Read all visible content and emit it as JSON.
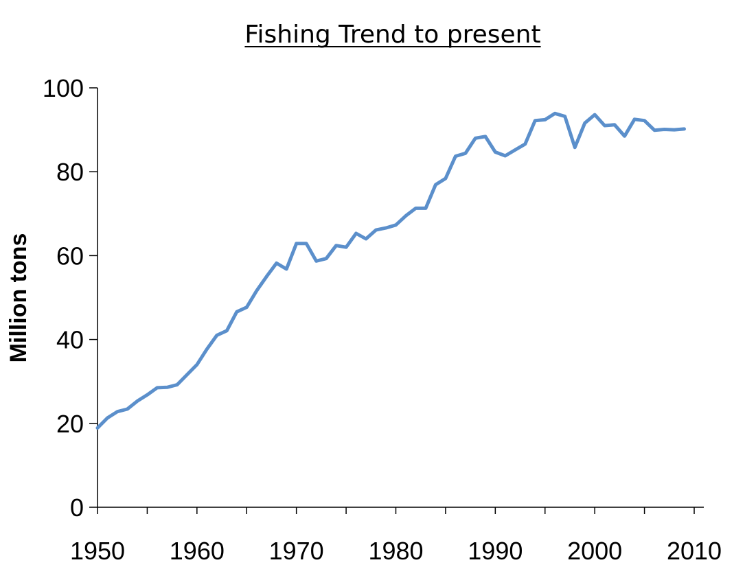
{
  "chart_data": {
    "type": "line",
    "title": "Fishing Trend to present",
    "xlabel": "",
    "ylabel": "Million tons",
    "xlim": [
      1950,
      2010
    ],
    "ylim": [
      0,
      100
    ],
    "x_ticks": [
      "1950",
      "1960",
      "1970",
      "1980",
      "1990",
      "2000",
      "2010"
    ],
    "y_ticks": [
      "0",
      "20",
      "40",
      "60",
      "80",
      "100"
    ],
    "grid": false,
    "legend": "none",
    "series_color": "#5B8FCB",
    "x": [
      1950,
      1951,
      1952,
      1953,
      1954,
      1955,
      1956,
      1957,
      1958,
      1959,
      1960,
      1961,
      1962,
      1963,
      1964,
      1965,
      1966,
      1967,
      1968,
      1969,
      1970,
      1971,
      1972,
      1973,
      1974,
      1975,
      1976,
      1977,
      1978,
      1979,
      1980,
      1981,
      1982,
      1983,
      1984,
      1985,
      1986,
      1987,
      1988,
      1989,
      1990,
      1991,
      1992,
      1993,
      1994,
      1995,
      1996,
      1997,
      1998,
      1999,
      2000,
      2001,
      2002,
      2003,
      2004,
      2005,
      2006,
      2007,
      2008,
      2009
    ],
    "series": [
      {
        "values": [
          18.9,
          21.3,
          22.8,
          23.4,
          25.3,
          26.8,
          28.5,
          28.6,
          29.2,
          31.6,
          34.0,
          37.7,
          41.0,
          42.1,
          46.6,
          47.7,
          51.6,
          55.0,
          58.2,
          56.8,
          62.9,
          62.9,
          58.7,
          59.3,
          62.4,
          62.0,
          65.3,
          64.0,
          66.1,
          66.6,
          67.3,
          69.5,
          71.3,
          71.3,
          76.9,
          78.4,
          83.7,
          84.4,
          88.0,
          88.4,
          84.7,
          83.8,
          85.2,
          86.6,
          92.2,
          92.4,
          93.9,
          93.2,
          85.8,
          91.6,
          93.6,
          91.0,
          91.2,
          88.5,
          92.5,
          92.2,
          89.9,
          90.1,
          90.0,
          90.2
        ]
      }
    ]
  }
}
